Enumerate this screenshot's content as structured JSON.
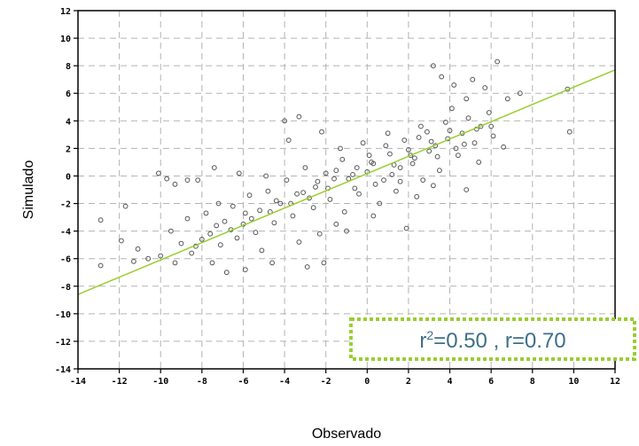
{
  "chart_data": {
    "type": "scatter",
    "title": "",
    "xlabel": "Observado",
    "ylabel": "Simulado",
    "xlim": [
      -14,
      12
    ],
    "ylim": [
      -14,
      12
    ],
    "xticks": [
      "-14",
      "-12",
      "-10",
      "-8",
      "-6",
      "-4",
      "-2",
      "0",
      "2",
      "4",
      "6",
      "8",
      "10",
      "12"
    ],
    "yticks": [
      "12",
      "10",
      "8",
      "6",
      "4",
      "2",
      "0",
      "-2",
      "-4",
      "-6",
      "-8",
      "-10",
      "-12",
      "-14"
    ],
    "grid": true,
    "series": [
      {
        "kind": "points",
        "marker": "open-circle",
        "color": "#555555",
        "points": [
          [
            -12.9,
            -6.5
          ],
          [
            -12.9,
            -3.2
          ],
          [
            -11.7,
            -2.2
          ],
          [
            -10.1,
            0.2
          ],
          [
            -9.7,
            -0.2
          ],
          [
            -9.3,
            -0.6
          ],
          [
            -8.7,
            -0.3
          ],
          [
            -8.2,
            -0.3
          ],
          [
            -7.4,
            0.6
          ],
          [
            -6.2,
            0.2
          ],
          [
            -4.9,
            0.0
          ],
          [
            -4.0,
            4.0
          ],
          [
            -3.8,
            2.6
          ],
          [
            -3.3,
            4.3
          ],
          [
            -2.2,
            3.2
          ],
          [
            -1.3,
            2.0
          ],
          [
            -0.2,
            2.4
          ],
          [
            1.0,
            3.1
          ],
          [
            2.6,
            3.6
          ],
          [
            3.2,
            8.0
          ],
          [
            3.6,
            7.2
          ],
          [
            4.2,
            6.6
          ],
          [
            4.8,
            5.6
          ],
          [
            5.1,
            7.0
          ],
          [
            5.7,
            6.4
          ],
          [
            6.3,
            8.3
          ],
          [
            6.8,
            5.6
          ],
          [
            7.4,
            6.0
          ],
          [
            9.7,
            6.3
          ],
          [
            9.8,
            3.2
          ],
          [
            6.6,
            2.1
          ],
          [
            5.4,
            1.0
          ],
          [
            4.8,
            -1.0
          ],
          [
            4.7,
            2.3
          ],
          [
            3.2,
            -0.7
          ],
          [
            2.4,
            -1.5
          ],
          [
            1.6,
            -0.4
          ],
          [
            1.9,
            -3.8
          ],
          [
            0.3,
            -2.9
          ],
          [
            -0.4,
            -1.3
          ],
          [
            -1.0,
            -4.0
          ],
          [
            -1.5,
            -3.5
          ],
          [
            -2.1,
            -6.3
          ],
          [
            -2.9,
            -6.6
          ],
          [
            -4.6,
            -6.3
          ],
          [
            -5.9,
            -6.8
          ],
          [
            -6.8,
            -7.0
          ],
          [
            -7.5,
            -6.3
          ],
          [
            -8.5,
            -5.6
          ],
          [
            -9.3,
            -6.3
          ],
          [
            -10.0,
            -5.8
          ],
          [
            -10.6,
            -6.0
          ],
          [
            -11.1,
            -5.3
          ],
          [
            -11.3,
            -6.2
          ],
          [
            -11.9,
            -4.7
          ],
          [
            -9.5,
            -4.0
          ],
          [
            -8.7,
            -3.1
          ],
          [
            -7.8,
            -2.7
          ],
          [
            -7.2,
            -2.0
          ],
          [
            -6.5,
            -2.2
          ],
          [
            -5.7,
            -1.4
          ],
          [
            -4.8,
            -1.1
          ],
          [
            -3.9,
            -0.3
          ],
          [
            -3.0,
            0.6
          ],
          [
            -2.0,
            0.2
          ],
          [
            -1.2,
            1.2
          ],
          [
            0.1,
            1.5
          ],
          [
            0.9,
            2.2
          ],
          [
            1.8,
            2.6
          ],
          [
            2.9,
            3.2
          ],
          [
            3.8,
            3.9
          ],
          [
            4.9,
            4.2
          ],
          [
            5.5,
            3.6
          ],
          [
            6.1,
            2.9
          ],
          [
            5.9,
            4.6
          ],
          [
            4.1,
            4.9
          ],
          [
            3.4,
            1.4
          ],
          [
            2.2,
            0.9
          ],
          [
            1.2,
            0.1
          ],
          [
            0.4,
            -0.6
          ],
          [
            -0.6,
            -0.9
          ],
          [
            -1.8,
            -1.7
          ],
          [
            -2.6,
            -2.3
          ],
          [
            -3.6,
            -2.9
          ],
          [
            -4.5,
            -3.4
          ],
          [
            -5.4,
            -4.1
          ],
          [
            -6.3,
            -4.5
          ],
          [
            -7.1,
            -5.0
          ],
          [
            -8.0,
            -4.6
          ],
          [
            -5.1,
            -5.4
          ],
          [
            -3.3,
            -4.8
          ],
          [
            -2.3,
            -4.2
          ],
          [
            -1.1,
            -2.6
          ],
          [
            0.6,
            -2.0
          ],
          [
            1.4,
            -1.1
          ],
          [
            2.7,
            -0.3
          ],
          [
            3.5,
            0.4
          ],
          [
            4.4,
            1.5
          ],
          [
            5.2,
            2.4
          ],
          [
            6.0,
            3.6
          ],
          [
            -6.9,
            -3.3
          ],
          [
            -5.9,
            -2.7
          ],
          [
            -4.2,
            -2.0
          ],
          [
            -3.1,
            -1.2
          ],
          [
            -2.4,
            -0.4
          ],
          [
            -1.5,
            0.4
          ],
          [
            -0.5,
            0.6
          ],
          [
            0.3,
            0.9
          ],
          [
            1.1,
            1.6
          ],
          [
            2.0,
            1.9
          ],
          [
            2.5,
            2.8
          ],
          [
            3.1,
            2.5
          ],
          [
            -9.0,
            -4.9
          ],
          [
            -8.3,
            -5.1
          ],
          [
            -7.6,
            -4.2
          ],
          [
            -6.6,
            -3.9
          ],
          [
            -5.6,
            -3.1
          ],
          [
            -4.7,
            -2.6
          ],
          [
            -3.7,
            -2.0
          ],
          [
            -2.8,
            -1.6
          ],
          [
            -1.9,
            -0.9
          ],
          [
            -0.9,
            -0.2
          ],
          [
            0.0,
            0.3
          ],
          [
            0.8,
            -0.3
          ],
          [
            1.6,
            0.6
          ],
          [
            2.3,
            1.3
          ],
          [
            3.0,
            1.8
          ],
          [
            3.9,
            2.7
          ],
          [
            4.6,
            3.1
          ],
          [
            5.3,
            3.4
          ],
          [
            4.3,
            2.0
          ],
          [
            -7.3,
            -3.6
          ],
          [
            -6.0,
            -3.5
          ],
          [
            -5.2,
            -2.5
          ],
          [
            -4.4,
            -1.8
          ],
          [
            -3.4,
            -1.3
          ],
          [
            -2.5,
            -0.8
          ],
          [
            -1.6,
            -0.2
          ],
          [
            -0.7,
            0.1
          ],
          [
            0.2,
            1.0
          ],
          [
            1.3,
            0.8
          ],
          [
            2.1,
            1.5
          ],
          [
            3.3,
            2.2
          ],
          [
            4.0,
            3.3
          ]
        ]
      },
      {
        "kind": "line",
        "name": "",
        "color": "#9acd32",
        "from": [
          -14,
          -8.6
        ],
        "to": [
          12,
          7.7
        ]
      }
    ],
    "annotation": {
      "text_prefix": "r",
      "text_superscript": "2",
      "text_rest": "=0.50 , r=0.70",
      "text_color": "#3e6f8a",
      "border_color": "#9acd32"
    }
  }
}
